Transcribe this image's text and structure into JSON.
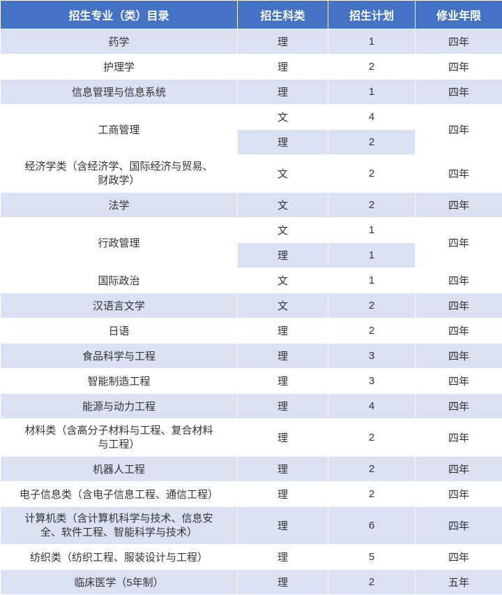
{
  "table": {
    "headers": {
      "major": "招生专业（类）目录",
      "type": "招生科类",
      "plan": "招生计划",
      "duration": "修业年限"
    },
    "colors": {
      "header_bg": "#4472c4",
      "header_text": "#ffffff",
      "row_even_bg": "#d9e1f2",
      "row_odd_bg": "#ffffff",
      "text_color": "#333333",
      "border_color": "#ffffff"
    },
    "column_widths": {
      "major": 340,
      "type": 130,
      "plan": 125,
      "duration": 125
    },
    "rows": [
      {
        "major": "药学",
        "type": "理",
        "plan": "1",
        "duration": "四年",
        "stripe": "even"
      },
      {
        "major": "护理学",
        "type": "理",
        "plan": "2",
        "duration": "四年",
        "stripe": "odd"
      },
      {
        "major": "信息管理与信息系统",
        "type": "理",
        "plan": "1",
        "duration": "四年",
        "stripe": "even"
      },
      {
        "major": "工商管理",
        "majorRowspan": 2,
        "type": "文",
        "plan": "4",
        "duration": "四年",
        "durationRowspan": 2,
        "stripe": "odd"
      },
      {
        "type": "理",
        "plan": "2",
        "stripe": "even"
      },
      {
        "major": "经济学类（含经济学、国际经济与贸易、\n财政学）",
        "type": "文",
        "plan": "2",
        "duration": "四年",
        "stripe": "odd",
        "multiline": true
      },
      {
        "major": "法学",
        "type": "文",
        "plan": "2",
        "duration": "四年",
        "stripe": "even"
      },
      {
        "major": "行政管理",
        "majorRowspan": 2,
        "type": "文",
        "plan": "1",
        "duration": "四年",
        "durationRowspan": 2,
        "stripe": "odd"
      },
      {
        "type": "理",
        "plan": "1",
        "stripe": "even"
      },
      {
        "major": "国际政治",
        "type": "文",
        "plan": "1",
        "duration": "四年",
        "stripe": "odd"
      },
      {
        "major": "汉语言文学",
        "type": "文",
        "plan": "2",
        "duration": "四年",
        "stripe": "even"
      },
      {
        "major": "日语",
        "type": "理",
        "plan": "2",
        "duration": "四年",
        "stripe": "odd"
      },
      {
        "major": "食品科学与工程",
        "type": "理",
        "plan": "3",
        "duration": "四年",
        "stripe": "even"
      },
      {
        "major": "智能制造工程",
        "type": "理",
        "plan": "3",
        "duration": "四年",
        "stripe": "odd"
      },
      {
        "major": "能源与动力工程",
        "type": "理",
        "plan": "4",
        "duration": "四年",
        "stripe": "even"
      },
      {
        "major": "材料类（含高分子材料与工程、复合材料\n与工程）",
        "type": "理",
        "plan": "2",
        "duration": "四年",
        "stripe": "odd",
        "multiline": true
      },
      {
        "major": "机器人工程",
        "type": "理",
        "plan": "2",
        "duration": "四年",
        "stripe": "even"
      },
      {
        "major": "电子信息类（含电子信息工程、通信工程）",
        "type": "理",
        "plan": "2",
        "duration": "四年",
        "stripe": "odd"
      },
      {
        "major": "计算机类（含计算机科学与技术、信息安\n全、软件工程、智能科学与技术）",
        "type": "理",
        "plan": "6",
        "duration": "四年",
        "stripe": "even",
        "multiline": true
      },
      {
        "major": "纺织类（纺织工程、服装设计与工程）",
        "type": "理",
        "plan": "5",
        "duration": "四年",
        "stripe": "odd"
      },
      {
        "major": "临床医学（5年制）",
        "type": "理",
        "plan": "2",
        "duration": "五年",
        "stripe": "even"
      }
    ]
  }
}
